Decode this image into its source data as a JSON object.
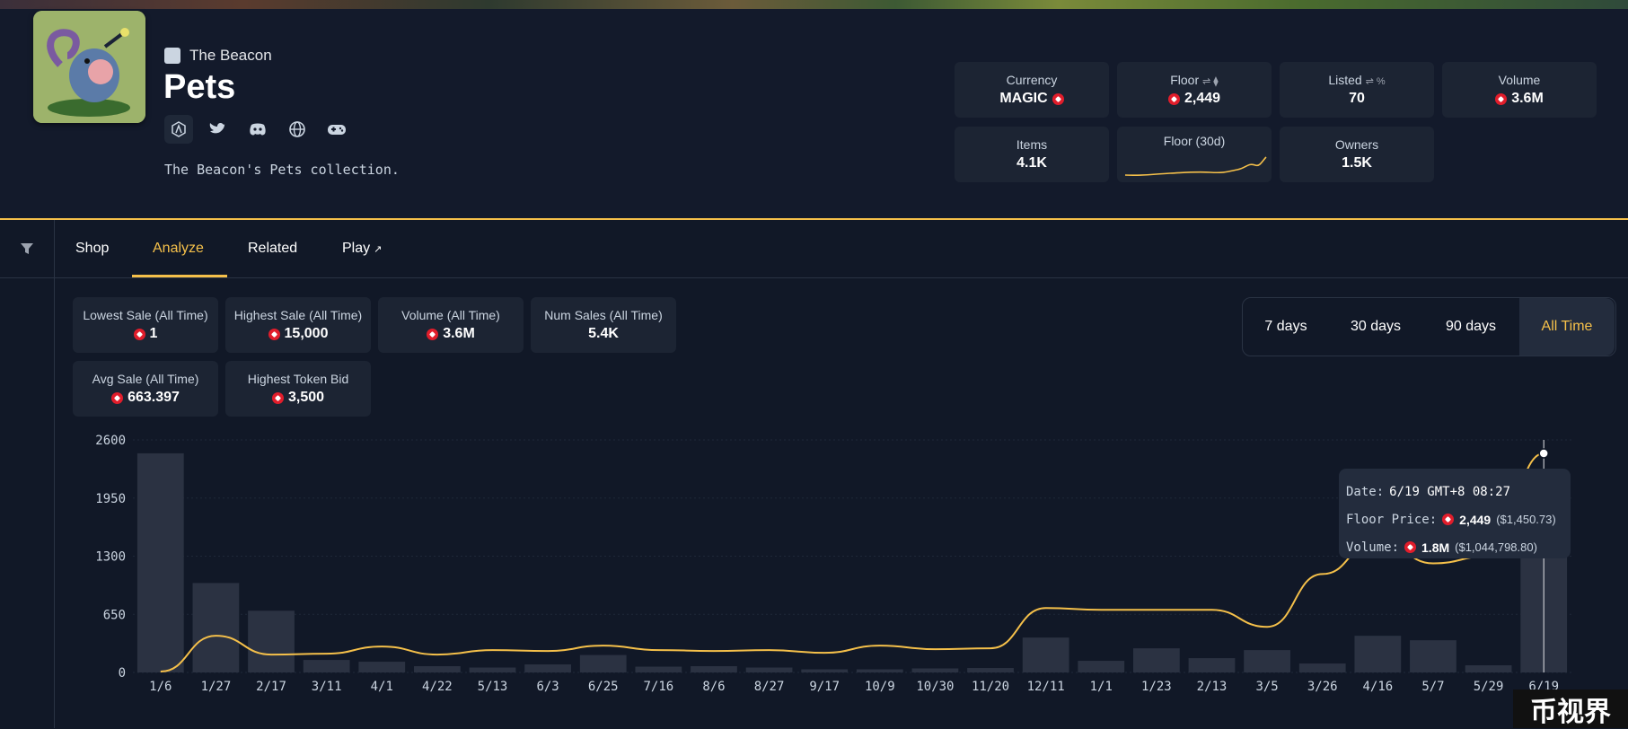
{
  "collection": {
    "brand": "The Beacon",
    "title": "Pets",
    "description": "The Beacon's Pets collection.",
    "socials": [
      "arbitrum-icon",
      "twitter-icon",
      "discord-icon",
      "globe-icon",
      "gamepad-icon"
    ]
  },
  "stats": [
    {
      "label": "Currency",
      "value": "MAGIC"
    },
    {
      "label": "Floor",
      "value": "2,449"
    },
    {
      "label": "Listed",
      "value": "70"
    },
    {
      "label": "Volume",
      "value": "3.6M"
    },
    {
      "label": "Items",
      "value": "4.1K"
    },
    {
      "label": "Floor (30d)",
      "value": ""
    },
    {
      "label": "Owners",
      "value": "1.5K"
    }
  ],
  "tabs": [
    "Shop",
    "Analyze",
    "Related",
    "Play"
  ],
  "sales": [
    {
      "label": "Lowest Sale (All Time)",
      "value": "1"
    },
    {
      "label": "Highest Sale (All Time)",
      "value": "15,000"
    },
    {
      "label": "Volume (All Time)",
      "value": "3.6M"
    },
    {
      "label": "Num Sales (All Time)",
      "value": "5.4K"
    },
    {
      "label": "Avg Sale (All Time)",
      "value": "663.397"
    },
    {
      "label": "Highest Token Bid",
      "value": "3,500"
    }
  ],
  "ranges": [
    "7 days",
    "30 days",
    "90 days",
    "All Time"
  ],
  "active_range": "All Time",
  "chart_data": {
    "type": "bar",
    "categories": [
      "1/6",
      "1/27",
      "2/17",
      "3/11",
      "4/1",
      "4/22",
      "5/13",
      "6/3",
      "6/25",
      "7/16",
      "8/6",
      "8/27",
      "9/17",
      "10/9",
      "10/30",
      "11/20",
      "12/11",
      "1/1",
      "1/23",
      "2/13",
      "3/5",
      "3/26",
      "4/16",
      "5/7",
      "5/29",
      "6/19"
    ],
    "series": [
      {
        "values": [
          2450,
          1000,
          690,
          140,
          120,
          70,
          55,
          90,
          195,
          65,
          70,
          55,
          35,
          35,
          45,
          50,
          390,
          130,
          270,
          160,
          250,
          100,
          410,
          360,
          80,
          1860
        ]
      },
      {
        "values": [
          10,
          410,
          200,
          210,
          290,
          200,
          250,
          240,
          300,
          250,
          240,
          250,
          220,
          300,
          260,
          270,
          720,
          700,
          700,
          700,
          510,
          1100,
          1500,
          1220,
          1300,
          2449
        ]
      }
    ],
    "ylim": [
      0,
      2600
    ],
    "yticks": [
      "0",
      "650",
      "1300",
      "1950",
      "2600"
    ],
    "tooltip": {
      "date_label": "Date:",
      "date": "6/19 GMT+8 08:27",
      "floor_label": "Floor Price:",
      "floor": "2,449",
      "floor_usd": "($1,450.73)",
      "volume_label": "Volume:",
      "volume": "1.8M",
      "volume_usd": "($1,044,798.80)"
    }
  },
  "watermark": "币视界"
}
